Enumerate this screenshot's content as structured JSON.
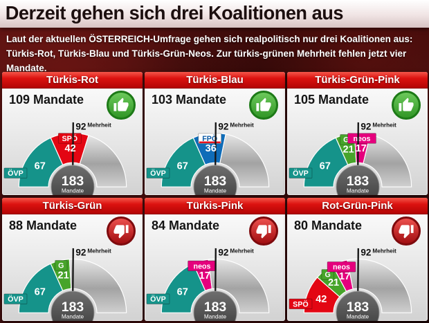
{
  "header": {
    "title": "Derzeit gehen sich drei Koalitionen aus",
    "subtitle": "Laut der aktuellen ÖSTERREICH-Umfrage gehen sich realpolitisch nur drei Koalitionen aus: Türkis-Rot, Türkis-Blau und Türkis-Grün-Neos. Zur türkis-grünen Mehrheit fehlen jetzt vier Mandate."
  },
  "colors": {
    "header_bar": "#d40d0d",
    "verdict_up": "#3faa35",
    "verdict_up_ring": "#1d7a17",
    "verdict_down": "#d2171c",
    "verdict_down_ring": "#7e0a0d",
    "gauge_rest": "#b5b5b5",
    "center_circle": "#4a4a4a",
    "needle": "#151515"
  },
  "parties": {
    "ÖVP": {
      "color": "#15938a",
      "box_bg": "#15938a",
      "box_fg": "#ffffff"
    },
    "SPÖ": {
      "color": "#e30613",
      "box_bg": "#e30613",
      "box_fg": "#ffffff"
    },
    "FPÖ": {
      "color": "#0f6cb8",
      "box_bg": "#ffffff",
      "box_fg": "#0b5aa5",
      "box_underline": "#e30613"
    },
    "G": {
      "color": "#47a42a",
      "box_bg": "#47a42a",
      "box_fg": "#ffffff"
    },
    "neos": {
      "color": "#e5007d",
      "box_bg": "#e5007d",
      "box_fg": "#ffffff"
    }
  },
  "chart_data": [
    {
      "type": "gauge",
      "title": "Türkis-Rot",
      "mandates": 109,
      "mandates_label": "109 Mandate",
      "verdict": "up",
      "total": 183,
      "center_label": "Mandate",
      "majority": 92,
      "majority_label": "Mehrheit",
      "segments": [
        {
          "party": "ÖVP",
          "value": 67
        },
        {
          "party": "SPÖ",
          "value": 42
        }
      ]
    },
    {
      "type": "gauge",
      "title": "Türkis-Blau",
      "mandates": 103,
      "mandates_label": "103 Mandate",
      "verdict": "up",
      "total": 183,
      "center_label": "Mandate",
      "majority": 92,
      "majority_label": "Mehrheit",
      "segments": [
        {
          "party": "ÖVP",
          "value": 67
        },
        {
          "party": "FPÖ",
          "value": 36
        }
      ]
    },
    {
      "type": "gauge",
      "title": "Türkis-Grün-Pink",
      "mandates": 105,
      "mandates_label": "105 Mandate",
      "verdict": "up",
      "total": 183,
      "center_label": "Mandate",
      "majority": 92,
      "majority_label": "Mehrheit",
      "segments": [
        {
          "party": "ÖVP",
          "value": 67
        },
        {
          "party": "G",
          "value": 21
        },
        {
          "party": "neos",
          "value": 17
        }
      ]
    },
    {
      "type": "gauge",
      "title": "Türkis-Grün",
      "mandates": 88,
      "mandates_label": "88 Mandate",
      "verdict": "down",
      "total": 183,
      "center_label": "Mandate",
      "majority": 92,
      "majority_label": "Mehrheit",
      "segments": [
        {
          "party": "ÖVP",
          "value": 67
        },
        {
          "party": "G",
          "value": 21
        }
      ]
    },
    {
      "type": "gauge",
      "title": "Türkis-Pink",
      "mandates": 84,
      "mandates_label": "84 Mandate",
      "verdict": "down",
      "total": 183,
      "center_label": "Mandate",
      "majority": 92,
      "majority_label": "Mehrheit",
      "segments": [
        {
          "party": "ÖVP",
          "value": 67
        },
        {
          "party": "neos",
          "value": 17
        }
      ]
    },
    {
      "type": "gauge",
      "title": "Rot-Grün-Pink",
      "mandates": 80,
      "mandates_label": "80 Mandate",
      "verdict": "down",
      "total": 183,
      "center_label": "Mandate",
      "majority": 92,
      "majority_label": "Mehrheit",
      "segments": [
        {
          "party": "SPÖ",
          "value": 42
        },
        {
          "party": "G",
          "value": 21
        },
        {
          "party": "neos",
          "value": 17
        }
      ]
    }
  ]
}
